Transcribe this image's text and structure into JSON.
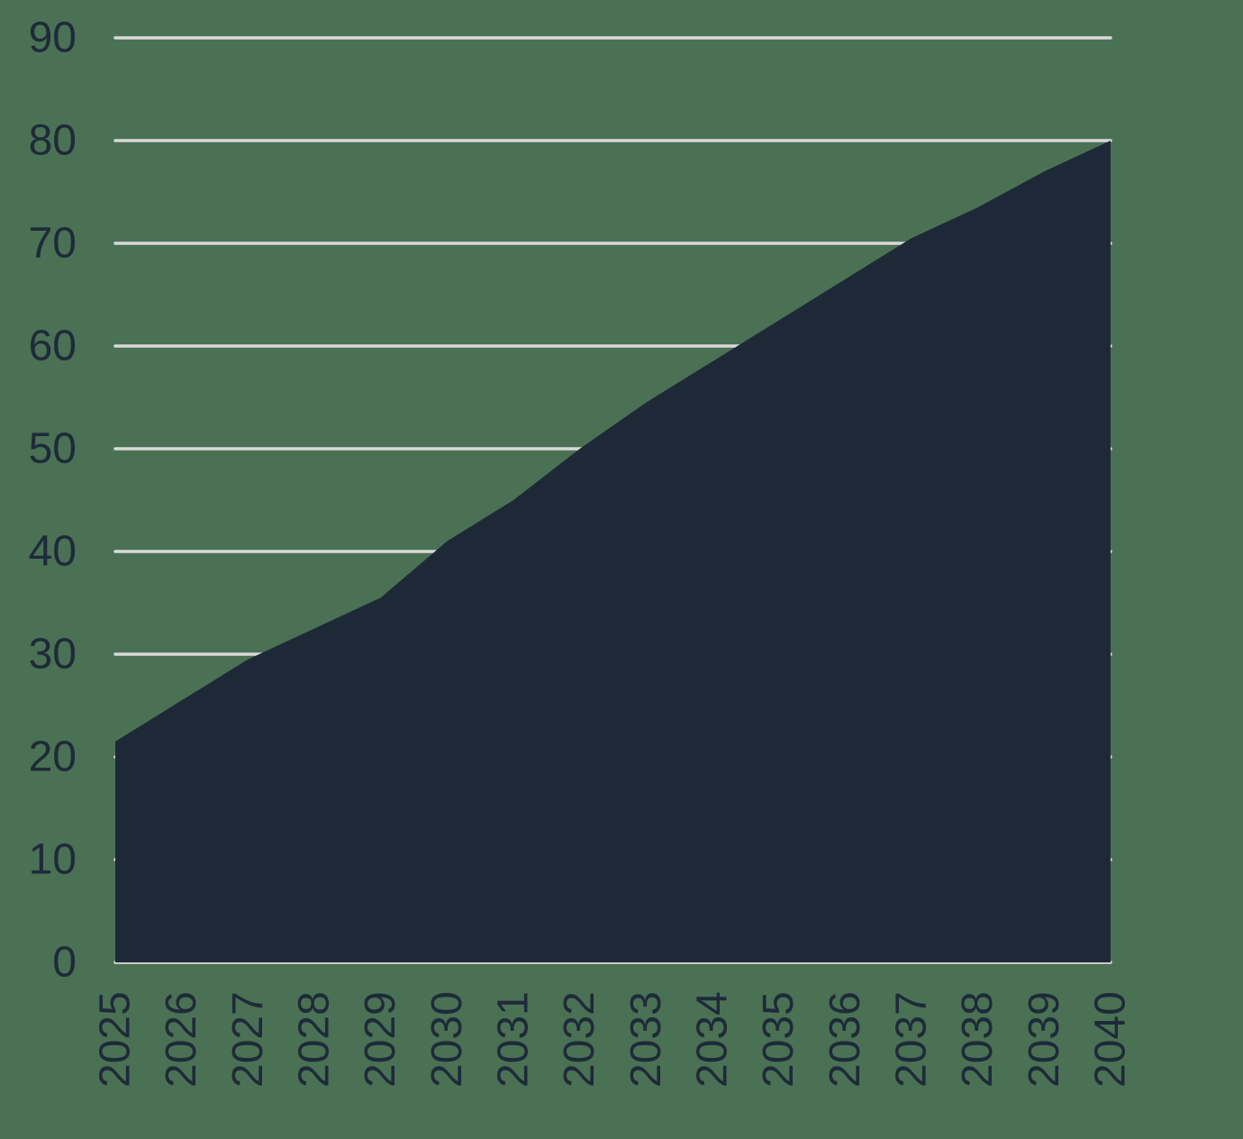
{
  "chart_data": {
    "type": "area",
    "title": "",
    "xlabel": "",
    "ylabel": "",
    "x": [
      2025,
      2026,
      2027,
      2028,
      2029,
      2030,
      2031,
      2032,
      2033,
      2034,
      2035,
      2036,
      2037,
      2038,
      2039,
      2040
    ],
    "x_tick_labels": [
      "2025",
      "2026",
      "2027",
      "2028",
      "2029",
      "2030",
      "2031",
      "2032",
      "2033",
      "2034",
      "2035",
      "2036",
      "2037",
      "2038",
      "2039",
      "2040"
    ],
    "series": [
      {
        "name": "value",
        "values": [
          21.5,
          25.5,
          29.5,
          32.5,
          35.5,
          41,
          45,
          50,
          54.5,
          58.5,
          62.5,
          66.5,
          70.5,
          73.5,
          77,
          80
        ]
      }
    ],
    "ylim": [
      0,
      90
    ],
    "y_ticks": [
      0,
      10,
      20,
      30,
      40,
      50,
      60,
      70,
      80,
      90
    ],
    "grid": "horizontal-only",
    "legend_position": "none",
    "x_tick_rotation_degrees": 90
  },
  "colors": {
    "background": "#4a7153",
    "area_fill": "#1e2938",
    "gridline": "#d9d9d9",
    "tick_label": "#1e2a3a"
  }
}
